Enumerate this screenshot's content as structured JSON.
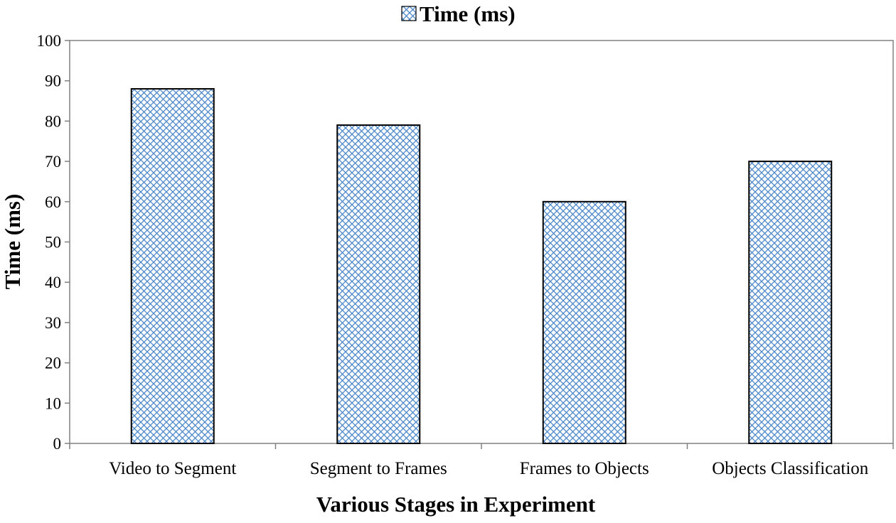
{
  "chart_data": {
    "type": "bar",
    "title": "",
    "categories": [
      "Video to Segment",
      "Segment to Frames",
      "Frames to Objects",
      "Objects Classification"
    ],
    "series": [
      {
        "name": "Time (ms)",
        "values": [
          88,
          79,
          60,
          70
        ]
      }
    ],
    "xlabel": "Various Stages in Experiment",
    "ylabel": "Time (ms)",
    "ylim": [
      0,
      100
    ],
    "yticks": [
      0,
      10,
      20,
      30,
      40,
      50,
      60,
      70,
      80,
      90,
      100
    ],
    "grid": false,
    "legend": {
      "position": "top-center",
      "label": "Time (ms)"
    },
    "colors": {
      "bar_pattern": "#4a86c8",
      "bar_fill": "#ffffff",
      "bar_edge": "#000000",
      "axis": "#808080"
    }
  }
}
